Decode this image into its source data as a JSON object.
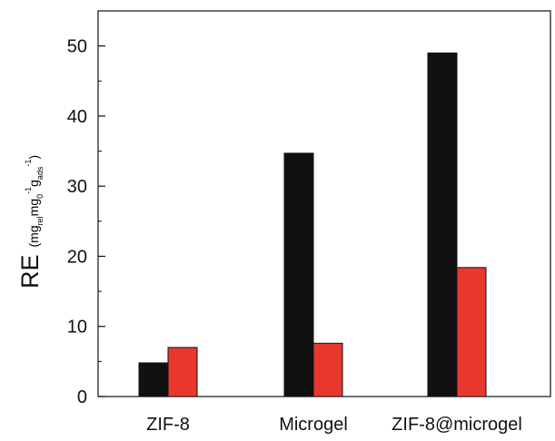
{
  "chart_data": {
    "type": "bar",
    "categories": [
      "ZIF-8",
      "Microgel",
      "ZIF-8@microgel"
    ],
    "series": [
      {
        "values": [
          4.8,
          34.7,
          49.0
        ],
        "color": "#111111"
      },
      {
        "values": [
          7.0,
          7.6,
          18.4
        ],
        "color": "#e8382e"
      }
    ],
    "ylim": [
      0,
      55
    ],
    "yticks": [
      0,
      10,
      20,
      30,
      40,
      50
    ],
    "yminor_step": 5,
    "ylabel": {
      "main": "RE",
      "unit_parts": [
        "(mg",
        "rel",
        "mg",
        "0",
        "-1",
        "g",
        "ads",
        "-1",
        ")"
      ]
    },
    "grid": false,
    "legend": "none"
  }
}
